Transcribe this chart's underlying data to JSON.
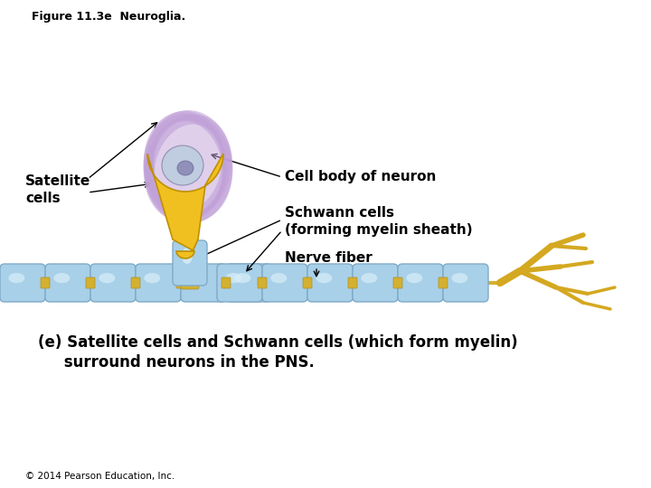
{
  "title": "Figure 11.3e  Neuroglia.",
  "title_fontsize": 9,
  "caption_line1": "(e) Satellite cells and Schwann cells (which form myelin)",
  "caption_line2": "     surround neurons in the PNS.",
  "caption_fontsize": 12,
  "copyright": "© 2014 Pearson Education, Inc.",
  "label_satellite": "Satellite\ncells",
  "label_cell_body": "Cell body of neuron",
  "label_schwann": "Schwann cells\n(forming myelin sheath)",
  "label_nerve": "Nerve fiber",
  "bg_color": "#ffffff",
  "neuron_body_color": "#f0c020",
  "neuron_nucleus_color": "#c8b060",
  "neuron_nucleus_inner": "#c0cce0",
  "satellite_color": "#c0a0d8",
  "schwann_color": "#a8d0e8",
  "schwann_edge": "#80aac8",
  "schwann_highlight": "#d8eef8",
  "axon_color": "#d4b030",
  "dendrite_color": "#d4a820",
  "node_ranvier_color": "#d4b030"
}
